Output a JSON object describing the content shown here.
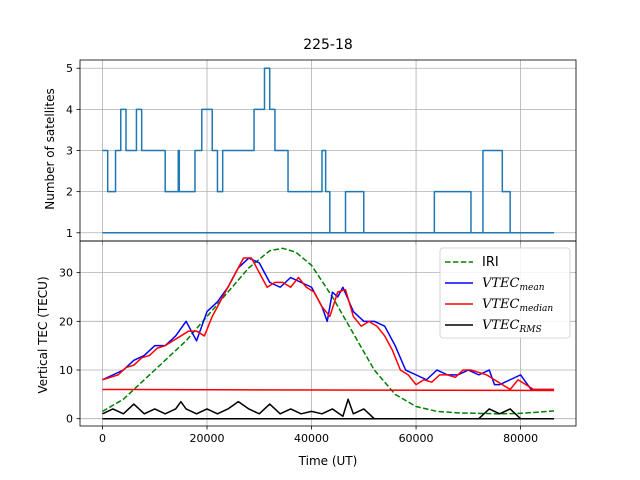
{
  "chart_data": [
    {
      "type": "line",
      "title": "225-18",
      "ylabel": "Number of satellites",
      "xlim": [
        -4300,
        90600
      ],
      "ylim": [
        0.8,
        5.2
      ],
      "xticks": [
        0,
        20000,
        40000,
        60000,
        80000
      ],
      "yticks": [
        1,
        2,
        3,
        4,
        5
      ],
      "grid": true,
      "series": [
        {
          "color": "#1f77b4",
          "x": [
            0,
            1000,
            1000,
            2500,
            2500,
            3500,
            3500,
            4500,
            4500,
            6500,
            6500,
            7500,
            7500,
            12000,
            12000,
            14500,
            14500,
            14700,
            14700,
            15000,
            15000,
            17700,
            17700,
            18000,
            18000,
            19000,
            19000,
            21000,
            21000,
            22000,
            22000,
            23000,
            23000,
            29000,
            29000,
            30000,
            30000,
            31000,
            31000,
            32000,
            32000,
            33000,
            33000,
            35500,
            35500,
            42000,
            42000,
            42700,
            42700,
            43500,
            43500,
            46500,
            46500,
            47000,
            47000,
            50000,
            50000,
            63500,
            63500,
            70500,
            70500,
            72800,
            72800,
            76500,
            76500,
            78000,
            78000,
            86400
          ],
          "y": [
            3,
            3,
            2,
            2,
            3,
            3,
            4,
            4,
            3,
            3,
            4,
            4,
            3,
            3,
            2,
            2,
            3,
            3,
            2,
            2,
            2,
            2,
            3,
            3,
            3,
            3,
            4,
            4,
            3,
            3,
            2,
            2,
            3,
            3,
            4,
            4,
            4,
            4,
            5,
            5,
            4,
            4,
            3,
            3,
            2,
            2,
            3,
            3,
            2,
            2,
            1,
            1,
            2,
            2,
            2,
            2,
            1,
            1,
            2,
            2,
            1,
            1,
            3,
            3,
            2,
            2,
            1,
            1
          ]
        },
        {
          "color": "#1f77b4",
          "x": [
            0,
            86400
          ],
          "y": [
            1,
            1
          ]
        }
      ]
    },
    {
      "type": "line",
      "xlabel": "Time (UT)",
      "ylabel": "Vertical TEC (TECU)",
      "xlim": [
        -4300,
        90600
      ],
      "ylim": [
        -1.5,
        36.5
      ],
      "xticks": [
        0,
        20000,
        40000,
        60000,
        80000
      ],
      "yticks": [
        0,
        10,
        20,
        30
      ],
      "grid": true,
      "legend_position": "top-right",
      "series": [
        {
          "name": "IRI",
          "color": "#008000",
          "style": "dashed",
          "x": [
            0,
            4000,
            8000,
            12000,
            16000,
            20000,
            24000,
            28000,
            32000,
            34500,
            37000,
            40000,
            44000,
            48000,
            52000,
            56000,
            60000,
            64000,
            68000,
            72000,
            76000,
            80000,
            84000,
            86400
          ],
          "y": [
            1.5,
            4,
            8,
            12,
            16,
            21,
            26,
            31,
            34.5,
            35,
            34.2,
            31.5,
            25,
            17.5,
            10,
            5,
            2.5,
            1.5,
            1.2,
            1.1,
            1,
            1.1,
            1.4,
            1.6
          ]
        },
        {
          "name": "VTEC_mean",
          "label_main": "VTEC",
          "label_sub": "mean",
          "color": "#0000ff",
          "x": [
            0,
            2000,
            4000,
            6000,
            8000,
            10000,
            12000,
            14000,
            16000,
            18000,
            20000,
            22000,
            24000,
            25000,
            26000,
            28000,
            30000,
            32000,
            34000,
            36000,
            38000,
            40000,
            42000,
            43000,
            44000,
            45000,
            46000,
            48000,
            50000,
            52000,
            54000,
            56000,
            58000,
            60000,
            62000,
            64000,
            66000,
            68000,
            70000,
            72000,
            74000,
            75000,
            76000,
            78000,
            80000,
            82000,
            84000,
            86400
          ],
          "y": [
            8,
            9,
            10,
            12,
            13,
            15,
            15,
            17,
            20,
            16,
            22,
            24,
            27,
            29,
            31,
            33,
            32,
            28,
            27,
            29,
            28,
            27,
            23,
            20,
            26,
            25,
            27,
            22,
            20,
            20,
            19,
            15,
            10,
            9,
            8,
            10,
            9,
            9,
            10,
            9,
            10,
            7,
            7,
            8,
            9,
            6,
            6,
            6
          ]
        },
        {
          "name": "VTEC_median",
          "label_main": "VTEC",
          "label_sub": "median",
          "color": "#ff0000",
          "x": [
            0,
            1500,
            3000,
            4500,
            6000,
            7500,
            9000,
            10500,
            12000,
            13500,
            15000,
            16500,
            18000,
            19500,
            21000,
            22500,
            24000,
            25500,
            27000,
            28500,
            30000,
            31500,
            33000,
            34500,
            36000,
            37500,
            39000,
            40500,
            42000,
            43500,
            45000,
            46500,
            48000,
            49500,
            51000,
            52500,
            54000,
            55500,
            57000,
            58500,
            60000,
            61500,
            63000,
            64500,
            66000,
            67500,
            69000,
            70500,
            72000,
            73500,
            75000,
            76500,
            78000,
            79500,
            81000,
            82500,
            84000,
            86400
          ],
          "y": [
            8,
            8.5,
            9,
            10.5,
            11,
            12.5,
            13,
            14.5,
            15,
            16,
            17,
            18,
            18,
            17,
            21,
            24,
            27,
            30,
            33,
            33,
            30,
            27,
            28,
            28,
            27,
            29,
            27,
            26,
            23,
            21,
            26,
            26.5,
            21,
            19,
            20,
            19,
            17,
            14,
            10,
            9,
            7,
            8,
            7.5,
            9,
            9,
            8.5,
            10,
            10,
            9.5,
            9,
            8,
            7,
            6,
            8,
            7,
            6,
            6,
            6
          ]
        },
        {
          "name": "VTEC_RMS",
          "label_main": "VTEC",
          "label_sub": "RMS",
          "color": "#000000",
          "x": [
            0,
            2000,
            4000,
            6000,
            8000,
            10000,
            12000,
            14000,
            15000,
            16000,
            18000,
            20000,
            22000,
            24000,
            26000,
            28000,
            30000,
            32000,
            34000,
            36000,
            38000,
            40000,
            42000,
            44000,
            46000,
            47000,
            48000,
            50000,
            52000,
            54000,
            56000,
            58000,
            60000,
            62000,
            64000,
            66000,
            68000,
            70000,
            72000,
            74000,
            76000,
            78000,
            80000,
            82000,
            84000,
            86400
          ],
          "y": [
            1,
            2,
            1,
            3,
            1,
            2,
            1,
            2,
            3.5,
            2,
            1,
            2,
            1,
            2,
            3.5,
            2,
            1,
            3,
            1,
            2,
            1,
            1.5,
            1,
            2,
            0.5,
            4,
            1,
            2,
            0,
            0,
            0,
            0,
            0,
            0,
            0,
            0,
            0,
            0,
            0,
            2,
            1,
            2,
            0,
            0,
            0,
            0
          ]
        },
        {
          "color": "#ff0000",
          "x": [
            0,
            86400
          ],
          "y": [
            6,
            5.8
          ]
        },
        {
          "color": "#000000",
          "x": [
            0,
            86400
          ],
          "y": [
            0,
            0
          ]
        }
      ]
    }
  ]
}
